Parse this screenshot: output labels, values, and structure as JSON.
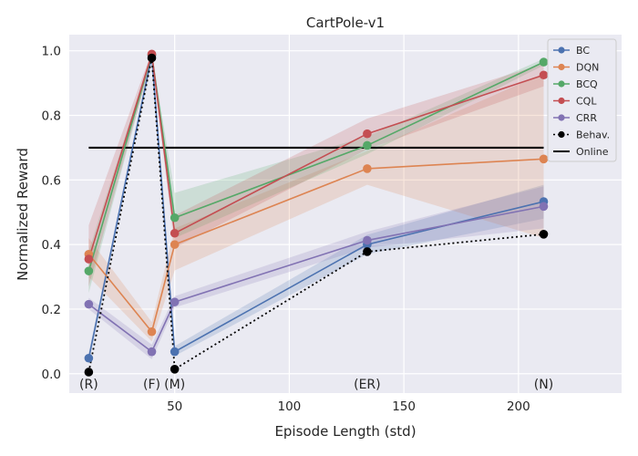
{
  "chart_data": {
    "type": "line",
    "title": "CartPole-v1",
    "xlabel": "Episode Length (std)",
    "ylabel": "Normalized Reward",
    "xlim": [
      4,
      245
    ],
    "ylim": [
      -0.06,
      1.05
    ],
    "xticks": [
      50,
      100,
      150,
      200
    ],
    "yticks": [
      0.0,
      0.2,
      0.4,
      0.6,
      0.8,
      1.0
    ],
    "grid": true,
    "legend_position": "top-right",
    "x": [
      12.5,
      40,
      50,
      134,
      211
    ],
    "point_labels": [
      "(R)",
      "(F)",
      "(M)",
      "(ER)",
      "(N)"
    ],
    "series": [
      {
        "name": "BC",
        "color": "#4c72b0",
        "values": [
          0.048,
          0.985,
          0.068,
          0.4,
          0.533
        ],
        "band": [
          [
            0.03,
            0.065
          ],
          [
            0.97,
            0.995
          ],
          [
            0.055,
            0.085
          ],
          [
            0.37,
            0.43
          ],
          [
            0.48,
            0.585
          ]
        ]
      },
      {
        "name": "DQN",
        "color": "#dd8452",
        "values": [
          0.37,
          0.13,
          0.4,
          0.635,
          0.665
        ],
        "band": [
          [
            0.3,
            0.42
          ],
          [
            0.1,
            0.16
          ],
          [
            0.32,
            0.45
          ],
          [
            0.585,
            0.69
          ],
          [
            0.42,
            0.93
          ]
        ]
      },
      {
        "name": "BCQ",
        "color": "#55a868",
        "values": [
          0.318,
          0.988,
          0.483,
          0.707,
          0.965
        ],
        "band": [
          [
            0.25,
            0.38
          ],
          [
            0.975,
            0.995
          ],
          [
            0.42,
            0.56
          ],
          [
            0.68,
            0.735
          ],
          [
            0.955,
            0.975
          ]
        ]
      },
      {
        "name": "CQL",
        "color": "#c44e52",
        "values": [
          0.355,
          0.99,
          0.435,
          0.743,
          0.925
        ],
        "band": [
          [
            0.27,
            0.46
          ],
          [
            0.975,
            0.998
          ],
          [
            0.39,
            0.49
          ],
          [
            0.695,
            0.79
          ],
          [
            0.89,
            0.96
          ]
        ]
      },
      {
        "name": "CRR",
        "color": "#8172b3",
        "values": [
          0.215,
          0.068,
          0.222,
          0.413,
          0.518
        ],
        "band": [
          [
            0.2,
            0.235
          ],
          [
            0.045,
            0.09
          ],
          [
            0.205,
            0.24
          ],
          [
            0.39,
            0.44
          ],
          [
            0.45,
            0.58
          ]
        ]
      },
      {
        "name": "Behav.",
        "color": "#000000",
        "style": "dotted",
        "values": [
          0.005,
          0.978,
          0.014,
          0.378,
          0.432
        ]
      }
    ],
    "reference_line": {
      "name": "Online",
      "color": "#000000",
      "y": 0.7,
      "x_range": [
        12.5,
        211
      ]
    }
  }
}
